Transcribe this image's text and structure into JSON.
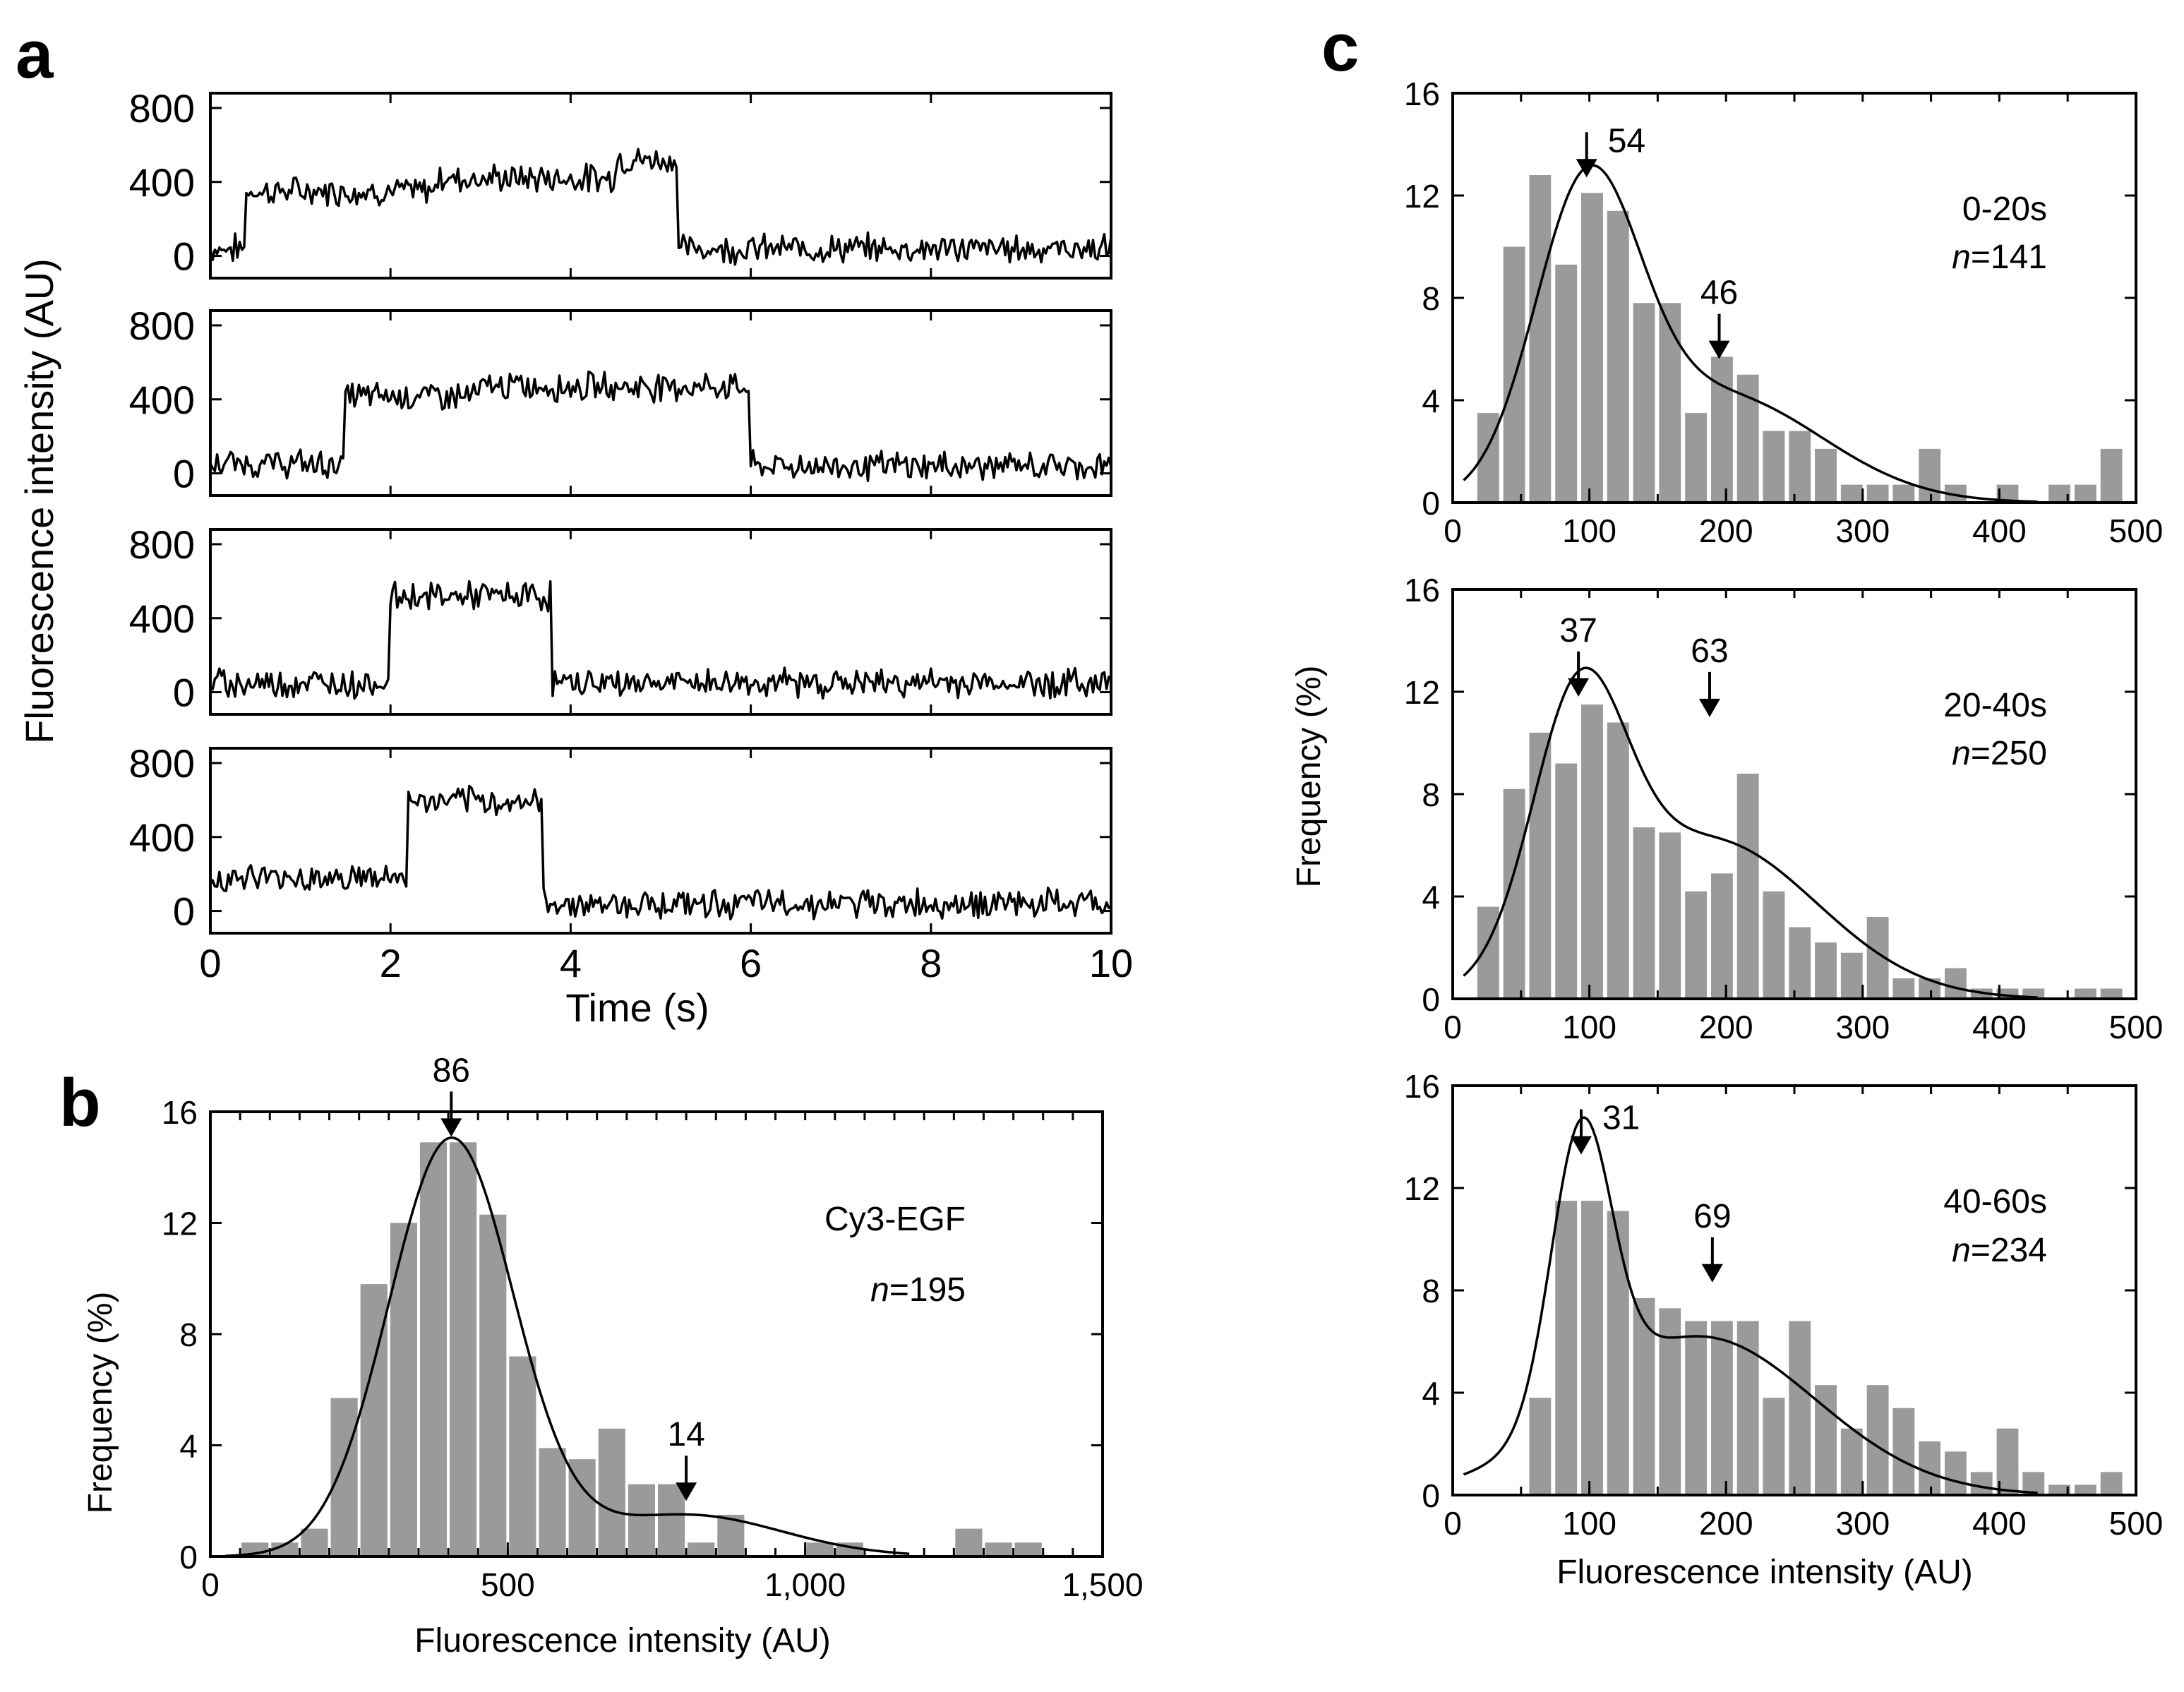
{
  "figure": {
    "panel_labels": [
      "a",
      "b",
      "c"
    ],
    "colors": {
      "bar": "#9a9a9a",
      "line": "#000000",
      "background": "#ffffff"
    }
  },
  "chart_data": [
    {
      "id": "a",
      "type": "line",
      "title": "",
      "xlabel": "Time (s)",
      "ylabel": "Fluorescence intensity (AU)",
      "xlim": [
        0,
        10
      ],
      "ylim": [
        -120,
        880
      ],
      "xticks": [
        0,
        2,
        4,
        6,
        8,
        10
      ],
      "xtick_labels": [
        "0",
        "2",
        "4",
        "6",
        "8",
        "10"
      ],
      "yticks": [
        0,
        400,
        800
      ],
      "ytick_labels": [
        "0",
        "400",
        "800"
      ],
      "noise_amplitude": 60,
      "traces": [
        {
          "name": "trace 1",
          "segments": [
            {
              "start": 0.0,
              "end": 0.4,
              "level": 40
            },
            {
              "start": 0.4,
              "end": 2.5,
              "level": 350
            },
            {
              "start": 2.5,
              "end": 4.5,
              "level": 420
            },
            {
              "start": 4.5,
              "end": 5.2,
              "level": 520
            },
            {
              "start": 5.2,
              "end": 10.0,
              "level": 40
            }
          ]
        },
        {
          "name": "trace 2",
          "segments": [
            {
              "start": 0.0,
              "end": 1.5,
              "level": 50
            },
            {
              "start": 1.5,
              "end": 3.0,
              "level": 420
            },
            {
              "start": 3.0,
              "end": 6.0,
              "level": 470
            },
            {
              "start": 6.0,
              "end": 10.0,
              "level": 40
            }
          ]
        },
        {
          "name": "trace 3",
          "segments": [
            {
              "start": 0.0,
              "end": 2.0,
              "level": 50
            },
            {
              "start": 2.0,
              "end": 3.8,
              "level": 520
            },
            {
              "start": 3.8,
              "end": 10.0,
              "level": 50
            }
          ]
        },
        {
          "name": "trace 4",
          "segments": [
            {
              "start": 0.0,
              "end": 2.2,
              "level": 180
            },
            {
              "start": 2.2,
              "end": 3.7,
              "level": 590
            },
            {
              "start": 3.7,
              "end": 10.0,
              "level": 40
            }
          ]
        }
      ]
    },
    {
      "id": "b",
      "type": "bar",
      "title": "",
      "xlabel": "Fluorescence intensity (AU)",
      "ylabel": "Frequency (%)",
      "xlim": [
        0,
        1500
      ],
      "ylim": [
        0,
        16
      ],
      "bin_width": 50,
      "xticks": [
        0,
        500,
        1000,
        1500
      ],
      "xtick_labels": [
        "0",
        "500",
        "1,000",
        "1,500"
      ],
      "yticks": [
        0,
        4,
        8,
        12,
        16
      ],
      "ytick_labels": [
        "0",
        "4",
        "8",
        "12",
        "16"
      ],
      "bin_centers": [
        75,
        125,
        175,
        225,
        275,
        325,
        375,
        425,
        475,
        525,
        575,
        625,
        675,
        725,
        775,
        825,
        875,
        925,
        975,
        1025,
        1075,
        1125,
        1175,
        1225,
        1275,
        1325,
        1375
      ],
      "values": [
        0.5,
        0.5,
        1.0,
        5.7,
        9.8,
        12.0,
        14.9,
        14.9,
        12.3,
        7.2,
        3.9,
        3.5,
        4.6,
        2.6,
        2.6,
        0.5,
        1.5,
        0,
        0,
        0.5,
        0.5,
        0,
        0,
        0,
        1.0,
        0.5,
        0.5
      ],
      "fit": {
        "components": [
          {
            "mean": 405,
            "sd": 105,
            "amplitude": 15.0
          },
          {
            "mean": 800,
            "sd": 160,
            "amplitude": 1.5
          }
        ]
      },
      "annotations": [
        {
          "text": "86",
          "x": 405,
          "y": 15.0
        },
        {
          "text": "14",
          "x": 800,
          "y": 1.9
        }
      ],
      "legend": {
        "label": "Cy3-EGF",
        "n_label": "n",
        "n_value": "=195"
      }
    },
    {
      "id": "c1",
      "type": "bar",
      "title": "",
      "xlabel": "",
      "ylabel": "Frequency (%)",
      "xlim": [
        0,
        500
      ],
      "ylim": [
        0,
        16
      ],
      "bin_width": 18,
      "xticks": [
        0,
        100,
        200,
        300,
        400,
        500
      ],
      "xtick_labels": [
        "0",
        "100",
        "200",
        "300",
        "400",
        "500"
      ],
      "yticks": [
        0,
        4,
        8,
        12,
        16
      ],
      "ytick_labels": [
        "0",
        "4",
        "8",
        "12",
        "16"
      ],
      "bin_centers": [
        26,
        45,
        64,
        83,
        102,
        121,
        140,
        159,
        178,
        197,
        216,
        235,
        254,
        273,
        292,
        311,
        330,
        349,
        368,
        387,
        406,
        425,
        444,
        463,
        482
      ],
      "values": [
        3.5,
        10.0,
        12.8,
        9.3,
        12.1,
        11.4,
        7.8,
        7.8,
        3.5,
        5.7,
        5.0,
        2.8,
        2.8,
        2.1,
        0.7,
        0.7,
        0.7,
        2.1,
        0.7,
        0,
        0.7,
        0,
        0.7,
        0.7,
        2.1
      ],
      "fit": {
        "components": [
          {
            "mean": 98,
            "sd": 38,
            "amplitude": 11.3
          },
          {
            "mean": 195,
            "sd": 75,
            "amplitude": 4.2
          }
        ]
      },
      "annotations": [
        {
          "text": "54",
          "x": 98,
          "y": 12.6
        },
        {
          "text": "46",
          "x": 195,
          "y": 5.5
        }
      ],
      "legend": {
        "label": "0-20s",
        "n_label": "n",
        "n_value": "=141"
      }
    },
    {
      "id": "c2",
      "type": "bar",
      "title": "",
      "xlabel": "",
      "ylabel": "Frequency (%)",
      "xlim": [
        0,
        500
      ],
      "ylim": [
        0,
        16
      ],
      "bin_width": 18,
      "xticks": [
        0,
        100,
        200,
        300,
        400,
        500
      ],
      "xtick_labels": [
        "0",
        "100",
        "200",
        "300",
        "400",
        "500"
      ],
      "yticks": [
        0,
        4,
        8,
        12,
        16
      ],
      "ytick_labels": [
        "0",
        "4",
        "8",
        "12",
        "16"
      ],
      "bin_centers": [
        26,
        45,
        64,
        83,
        102,
        121,
        140,
        159,
        178,
        197,
        216,
        235,
        254,
        273,
        292,
        311,
        330,
        349,
        368,
        387,
        406,
        425,
        444,
        463,
        482
      ],
      "values": [
        3.6,
        8.2,
        10.4,
        9.2,
        11.5,
        10.8,
        6.7,
        6.5,
        4.2,
        4.9,
        8.8,
        4.2,
        2.8,
        2.2,
        1.8,
        3.2,
        0.8,
        0.8,
        1.2,
        0.4,
        0.4,
        0.4,
        0,
        0.4,
        0.4
      ],
      "fit": {
        "components": [
          {
            "mean": 92,
            "sd": 34,
            "amplitude": 9.9
          },
          {
            "mean": 188,
            "sd": 78,
            "amplitude": 6.2
          }
        ]
      },
      "annotations": [
        {
          "text": "37",
          "x": 92,
          "y": 11.7
        },
        {
          "text": "63",
          "x": 188,
          "y": 10.9
        }
      ],
      "legend": {
        "label": "20-40s",
        "n_label": "n",
        "n_value": "=250"
      }
    },
    {
      "id": "c3",
      "type": "bar",
      "title": "",
      "xlabel": "Fluorescence intensity (AU)",
      "ylabel": "Frequency (%)",
      "xlim": [
        0,
        500
      ],
      "ylim": [
        0,
        16
      ],
      "bin_width": 18,
      "xticks": [
        0,
        100,
        200,
        300,
        400,
        500
      ],
      "xtick_labels": [
        "0",
        "100",
        "200",
        "300",
        "400",
        "500"
      ],
      "yticks": [
        0,
        4,
        8,
        12,
        16
      ],
      "ytick_labels": [
        "0",
        "4",
        "8",
        "12",
        "16"
      ],
      "bin_centers": [
        26,
        45,
        64,
        83,
        102,
        121,
        140,
        159,
        178,
        197,
        216,
        235,
        254,
        273,
        292,
        311,
        330,
        349,
        368,
        387,
        406,
        425,
        444,
        463,
        482
      ],
      "values": [
        0,
        0,
        3.8,
        11.5,
        11.5,
        11.1,
        7.7,
        7.3,
        6.8,
        6.8,
        6.8,
        3.8,
        6.8,
        4.3,
        2.6,
        4.3,
        3.4,
        2.1,
        1.7,
        0.9,
        2.6,
        0.9,
        0.4,
        0.4,
        0.9
      ],
      "fit": {
        "components": [
          {
            "mean": 94,
            "sd": 22,
            "amplitude": 11.0
          },
          {
            "mean": 180,
            "sd": 85,
            "amplitude": 6.2
          }
        ]
      },
      "annotations": [
        {
          "text": "31",
          "x": 94,
          "y": 13.2
        },
        {
          "text": "69",
          "x": 190,
          "y": 8.2
        }
      ],
      "legend": {
        "label": "40-60s",
        "n_label": "n",
        "n_value": "=234"
      }
    }
  ]
}
